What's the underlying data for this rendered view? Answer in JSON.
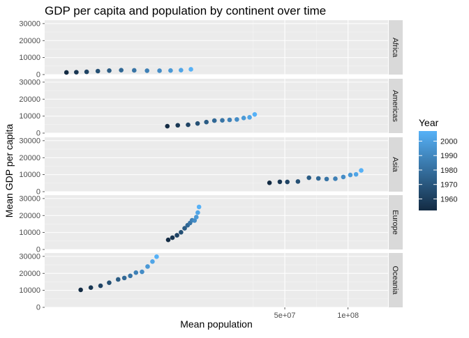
{
  "chart_data": {
    "type": "scatter",
    "title": "GDP per capita and population by continent over time",
    "xlabel": "Mean population",
    "ylabel": "Mean GDP per capita",
    "x_scale": "log10",
    "x_ticks": [
      {
        "value": 50000000,
        "label": "5e+07"
      },
      {
        "value": 100000000,
        "label": "1e+08"
      }
    ],
    "y_ticks": [
      0,
      10000,
      20000,
      30000
    ],
    "y_tick_labels": [
      "0",
      "10000",
      "20000",
      "30000"
    ],
    "ylim": [
      0,
      32000
    ],
    "grid": true,
    "facet_by": "continent",
    "legend": {
      "title": "Year",
      "position": "right",
      "entries": [
        {
          "value": 2000,
          "label": "2000"
        },
        {
          "value": 1990,
          "label": "1990"
        },
        {
          "value": 1980,
          "label": "1980"
        },
        {
          "value": 1970,
          "label": "1970"
        },
        {
          "value": 1960,
          "label": "1960"
        }
      ],
      "color_low": "#132B43",
      "color_high": "#56B1F7",
      "range": [
        1952,
        2007
      ]
    },
    "years": [
      1952,
      1957,
      1962,
      1967,
      1972,
      1977,
      1982,
      1987,
      1992,
      1997,
      2002,
      2007
    ],
    "panels": [
      {
        "name": "Africa",
        "population": [
          4570010,
          5093033,
          5702247,
          6447875,
          7305376,
          8328097,
          9602857,
          11054502,
          12674645,
          14304480,
          16033152,
          17875763
        ],
        "gdp_per_capita": [
          1253,
          1385,
          1598,
          2050,
          2340,
          2586,
          2482,
          2283,
          2282,
          2379,
          2599,
          3089
        ]
      },
      {
        "name": "Americas",
        "population": [
          13806098,
          15478157,
          17330810,
          19229865,
          21175368,
          23122708,
          25211637,
          27310159,
          29570964,
          31876016,
          33990910,
          35954847
        ],
        "gdp_per_capita": [
          4079,
          4616,
          4902,
          5668,
          6491,
          7352,
          7507,
          7793,
          8045,
          8889,
          9288,
          11003
        ]
      },
      {
        "name": "Asia",
        "population": [
          42283556,
          47356988,
          51404763,
          57747361,
          65180977,
          72257987,
          79095018,
          87006690,
          94948248,
          102523803,
          109145521,
          115513752
        ],
        "gdp_per_capita": [
          5195,
          5788,
          5729,
          5971,
          8187,
          7791,
          7434,
          7608,
          8640,
          9834,
          10174,
          12473
        ]
      },
      {
        "name": "Europe",
        "population": [
          13937362,
          14596345,
          15345172,
          16039299,
          16687835,
          17238818,
          17708897,
          18103139,
          18604760,
          18964805,
          19274129,
          19536618
        ],
        "gdp_per_capita": [
          5661,
          6963,
          8365,
          10144,
          12480,
          14284,
          15618,
          17214,
          17062,
          19077,
          21712,
          25054
        ]
      },
      {
        "name": "Oceania",
        "population": [
          5343003,
          5970988,
          6641759,
          7300207,
          8053050,
          8619500,
          9197425,
          9787208,
          10459826,
          11120715,
          11727414,
          12274974
        ],
        "gdp_per_capita": [
          10298,
          11599,
          12696,
          14495,
          16417,
          17284,
          18555,
          20448,
          20894,
          24024,
          26939,
          29810
        ]
      }
    ]
  }
}
